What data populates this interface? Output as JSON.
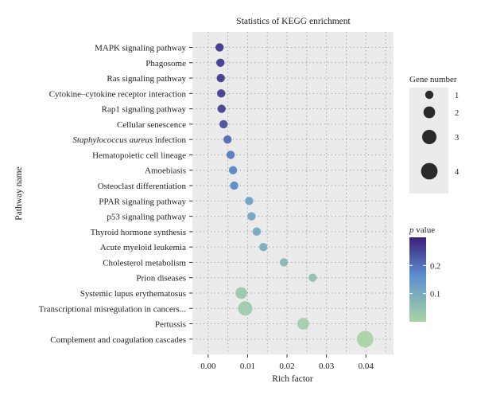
{
  "chart_data": {
    "type": "scatter",
    "title": "Statistics of KEGG enrichment",
    "xlabel": "Rich factor",
    "ylabel": "Pathway name",
    "xlim": [
      -0.004,
      0.047
    ],
    "x_ticks": [
      {
        "value": 0.0,
        "label": "0.00"
      },
      {
        "value": 0.01,
        "label": "0.01"
      },
      {
        "value": 0.02,
        "label": "0.02"
      },
      {
        "value": 0.03,
        "label": "0.03"
      },
      {
        "value": 0.04,
        "label": "0.04"
      }
    ],
    "grid": "dotted",
    "points": [
      {
        "pathway": "MAPK signaling pathway",
        "rich_factor": 0.0029,
        "gene_number": 1,
        "p_value": 0.27
      },
      {
        "pathway": "Phagosome",
        "rich_factor": 0.0031,
        "gene_number": 1,
        "p_value": 0.268
      },
      {
        "pathway": "Ras signaling pathway",
        "rich_factor": 0.0032,
        "gene_number": 1,
        "p_value": 0.265
      },
      {
        "pathway": "Cytokine–cytokine receptor interaction",
        "rich_factor": 0.0033,
        "gene_number": 1,
        "p_value": 0.262
      },
      {
        "pathway": "Rap1 signaling pathway",
        "rich_factor": 0.0034,
        "gene_number": 1,
        "p_value": 0.258
      },
      {
        "pathway": "Cellular senescence",
        "rich_factor": 0.0039,
        "gene_number": 1,
        "p_value": 0.24
      },
      {
        "pathway": "Staphylococcus aureus infection",
        "rich_factor": 0.0049,
        "gene_number": 1,
        "p_value": 0.21
      },
      {
        "pathway": "Hematopoietic cell lineage",
        "rich_factor": 0.0057,
        "gene_number": 1,
        "p_value": 0.19
      },
      {
        "pathway": "Amoebiasis",
        "rich_factor": 0.0063,
        "gene_number": 1,
        "p_value": 0.175
      },
      {
        "pathway": "Osteoclast differentiation",
        "rich_factor": 0.0066,
        "gene_number": 1,
        "p_value": 0.17
      },
      {
        "pathway": "PPAR signaling pathway",
        "rich_factor": 0.0104,
        "gene_number": 1,
        "p_value": 0.12
      },
      {
        "pathway": "p53 signaling pathway",
        "rich_factor": 0.011,
        "gene_number": 1,
        "p_value": 0.115
      },
      {
        "pathway": "Thyroid hormone synthesis",
        "rich_factor": 0.0123,
        "gene_number": 1,
        "p_value": 0.105
      },
      {
        "pathway": "Acute myeloid leukemia",
        "rich_factor": 0.014,
        "gene_number": 1,
        "p_value": 0.095
      },
      {
        "pathway": "Cholesterol metabolism",
        "rich_factor": 0.0192,
        "gene_number": 1,
        "p_value": 0.07
      },
      {
        "pathway": "Prion diseases",
        "rich_factor": 0.0265,
        "gene_number": 1,
        "p_value": 0.05
      },
      {
        "pathway": "Systemic lupus erythematosus",
        "rich_factor": 0.0084,
        "gene_number": 2,
        "p_value": 0.035
      },
      {
        "pathway": "Transcriptional misregulation in cancers...",
        "rich_factor": 0.0094,
        "gene_number": 3,
        "p_value": 0.025
      },
      {
        "pathway": "Pertussis",
        "rich_factor": 0.0241,
        "gene_number": 2,
        "p_value": 0.02
      },
      {
        "pathway": "Complement and coagulation cascades",
        "rich_factor": 0.0398,
        "gene_number": 4,
        "p_value": 0.005
      }
    ],
    "size_legend": {
      "title": "Gene number",
      "values": [
        1,
        2,
        3,
        4
      ],
      "labels": [
        "1",
        "2",
        "3",
        "4"
      ]
    },
    "color_legend": {
      "title_italic": "p",
      "title_rest": " value",
      "domain": [
        0.0,
        0.3
      ],
      "ticks": [
        {
          "value": 0.1,
          "label": "0.1"
        },
        {
          "value": 0.2,
          "label": "0.2"
        }
      ],
      "color_low": "#a8d5a3",
      "color_mid": "#5b8fcf",
      "color_high": "#3a1f7a"
    },
    "colors": {
      "panel": "#ebebeb",
      "grid": "#9a9a9a",
      "legend_dot": "#2b2b2b"
    }
  }
}
